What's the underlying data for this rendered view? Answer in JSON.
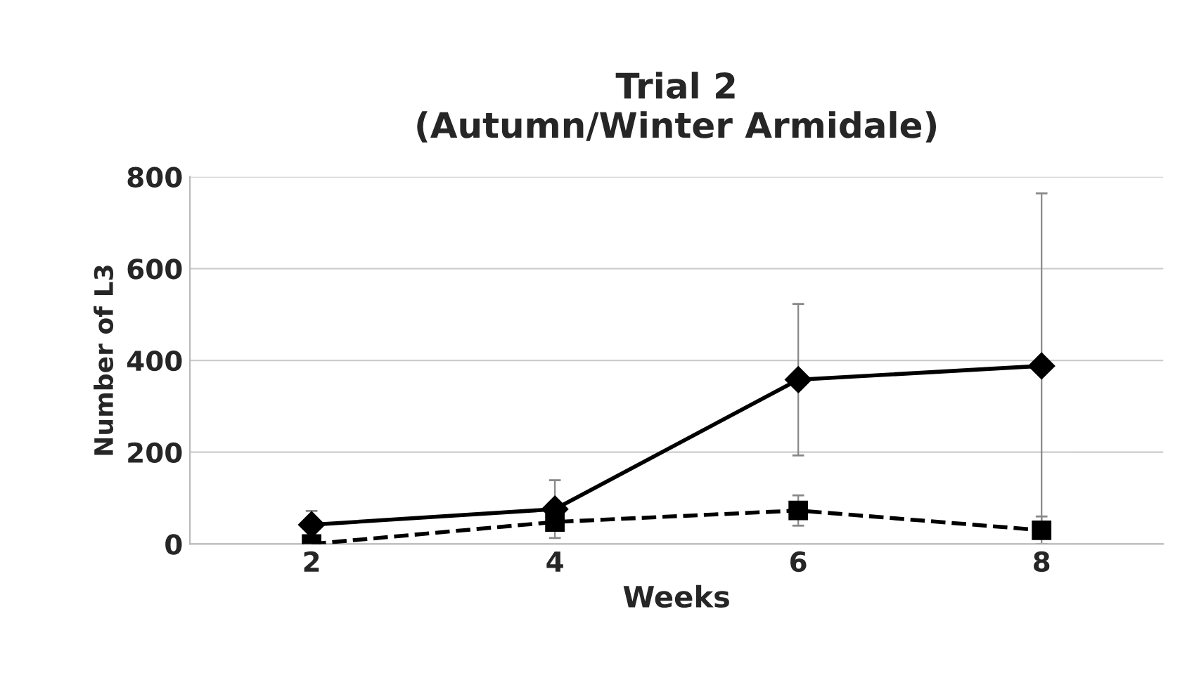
{
  "chart_data": {
    "type": "line",
    "title": "Trial 2\n(Autumn/Winter Armidale)",
    "xlabel": "Weeks",
    "ylabel": "Number of L3",
    "categories": [
      "2",
      "4",
      "6",
      "8"
    ],
    "series": [
      {
        "color": "#000000",
        "marker": "diamond",
        "line_style": "solid",
        "values": [
          42,
          76,
          358,
          388
        ],
        "errors": [
          30,
          63,
          165,
          376
        ]
      },
      {
        "color": "#000000",
        "marker": "square",
        "line_style": "dashed",
        "values": [
          0,
          48,
          73,
          30
        ],
        "errors": [
          5,
          15,
          33,
          30
        ]
      }
    ],
    "ylim": [
      0,
      800
    ],
    "yticks": [
      0,
      200,
      400,
      600,
      800
    ],
    "grid": "y"
  }
}
